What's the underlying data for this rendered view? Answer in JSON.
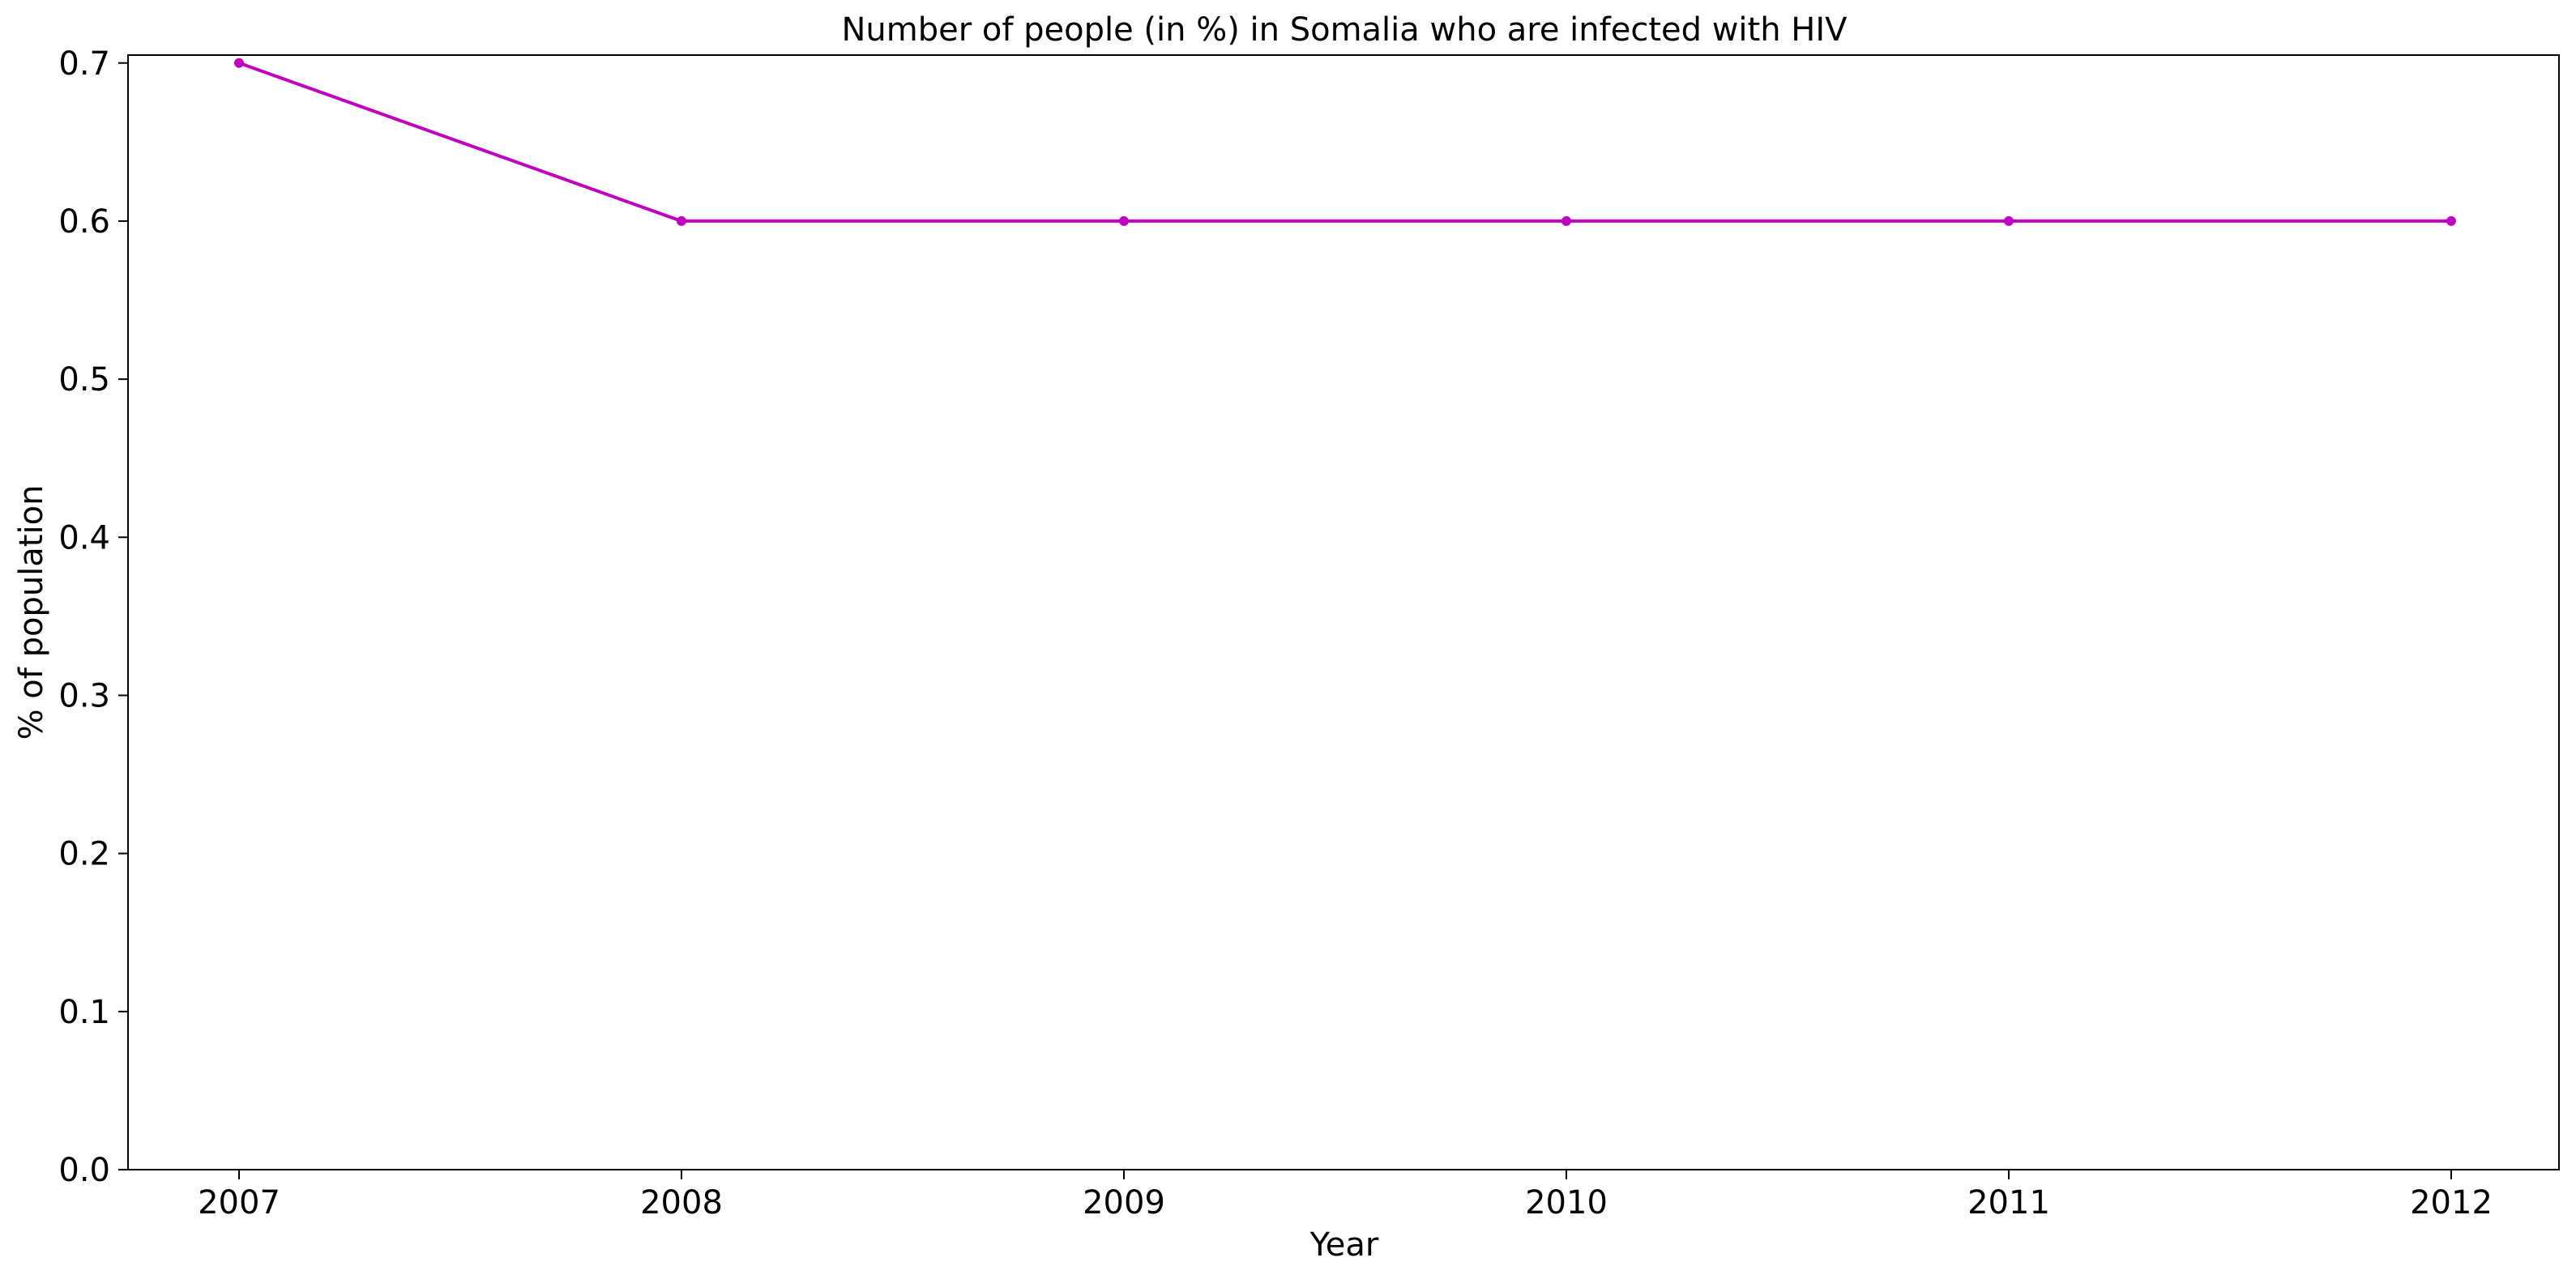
{
  "chart_data": {
    "type": "line",
    "title": "Number of people (in %) in Somalia who are infected with HIV",
    "xlabel": "Year",
    "ylabel": "% of population",
    "x": [
      "2007",
      "2008",
      "2009",
      "2010",
      "2011",
      "2012"
    ],
    "series": [
      {
        "values": [
          0.7,
          0.6,
          0.6,
          0.6,
          0.6,
          0.6
        ],
        "color": "#bf00bf",
        "marker": "circle"
      }
    ],
    "ylim": [
      0,
      0.705
    ],
    "yticks": [
      0.0,
      0.1,
      0.2,
      0.3,
      0.4,
      0.5,
      0.6,
      0.7
    ],
    "ytick_labels": [
      "0.0",
      "0.1",
      "0.2",
      "0.3",
      "0.4",
      "0.5",
      "0.6",
      "0.7"
    ],
    "grid": false,
    "legend": "none"
  }
}
